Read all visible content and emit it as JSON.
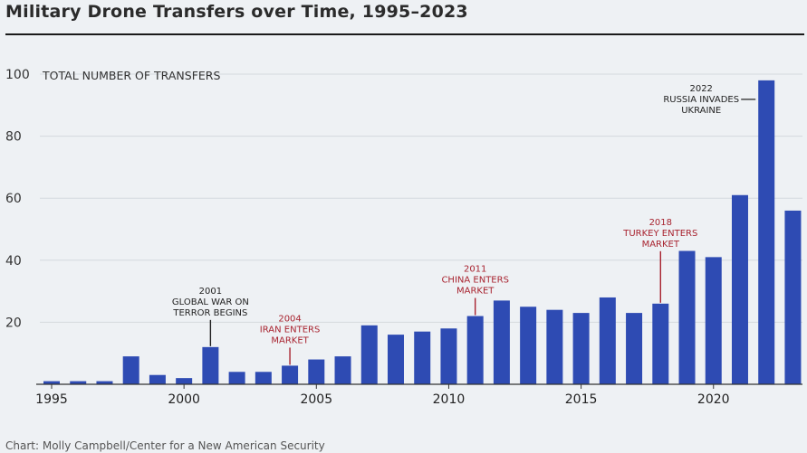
{
  "header": {
    "title": "Military Drone Transfers over Time, 1995–2023"
  },
  "footer": {
    "credit": "Chart: Molly Campbell/Center for a New American Security"
  },
  "colors": {
    "bar": "#2e4bb3",
    "annotation_dark": "#222222",
    "annotation_red": "#a8232f"
  },
  "chart_data": {
    "type": "bar",
    "title": "Military Drone Transfers over Time, 1995–2023",
    "xlabel": "",
    "ylabel": "TOTAL NUMBER OF TRANSFERS",
    "ylim": [
      0,
      100
    ],
    "yticks": [
      20,
      40,
      60,
      80,
      100
    ],
    "xticks": [
      1995,
      2000,
      2005,
      2010,
      2015,
      2020
    ],
    "grid": true,
    "categories": [
      1995,
      1996,
      1997,
      1998,
      1999,
      2000,
      2001,
      2002,
      2003,
      2004,
      2005,
      2006,
      2007,
      2008,
      2009,
      2010,
      2011,
      2012,
      2013,
      2014,
      2015,
      2016,
      2017,
      2018,
      2019,
      2020,
      2021,
      2022,
      2023
    ],
    "values": [
      1,
      1,
      1,
      9,
      3,
      2,
      12,
      4,
      4,
      6,
      8,
      9,
      19,
      16,
      17,
      18,
      22,
      27,
      25,
      24,
      23,
      28,
      23,
      26,
      43,
      41,
      61,
      98,
      56
    ],
    "annotations": [
      {
        "year": 2001,
        "lines": [
          "2001",
          "GLOBAL WAR ON",
          "TERROR BEGINS"
        ],
        "color": "dark",
        "position": "above"
      },
      {
        "year": 2004,
        "lines": [
          "2004",
          "IRAN ENTERS",
          "MARKET"
        ],
        "color": "red",
        "position": "above"
      },
      {
        "year": 2011,
        "lines": [
          "2011",
          "CHINA ENTERS",
          "MARKET"
        ],
        "color": "red",
        "position": "above"
      },
      {
        "year": 2018,
        "lines": [
          "2018",
          "TURKEY ENTERS",
          "MARKET"
        ],
        "color": "red",
        "position": "above"
      },
      {
        "year": 2022,
        "lines": [
          "2022",
          "RUSSIA INVADES",
          "UKRAINE"
        ],
        "color": "dark",
        "position": "left"
      }
    ]
  }
}
